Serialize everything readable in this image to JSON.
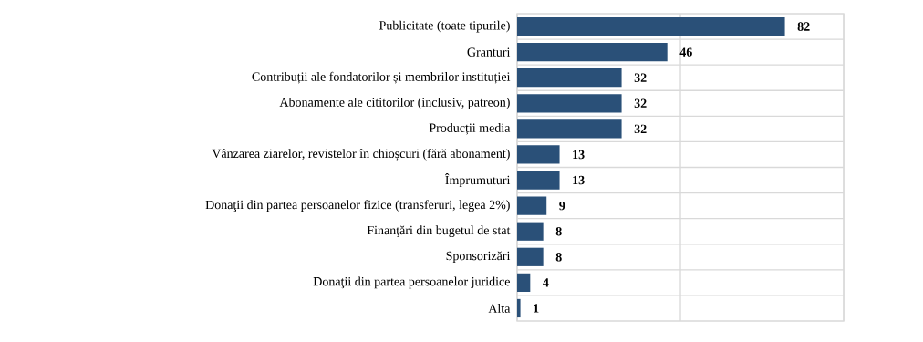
{
  "chart_data": {
    "type": "bar",
    "orientation": "horizontal",
    "categories": [
      "Publicitate (toate tipurile)",
      "Granturi",
      "Contribuții ale fondatorilor și membrilor instituției",
      "Abonamente ale cititorilor (inclusiv, patreon)",
      "Producții media",
      "Vânzarea ziarelor, revistelor în chioșcuri (fără abonament)",
      "Împrumuturi",
      "Donaţii din partea persoanelor fizice (transferuri, legea 2%)",
      "Finanţări din bugetul de stat",
      "Sponsorizări",
      "Donaţii din partea persoanelor juridice",
      "Alta"
    ],
    "values": [
      82,
      46,
      32,
      32,
      32,
      13,
      13,
      9,
      8,
      8,
      4,
      1
    ],
    "color": "#2a5078",
    "xlim": [
      0,
      100
    ],
    "xticks": [
      {
        "value": 0,
        "label": null
      },
      {
        "value": 50,
        "label": null
      },
      {
        "value": 100,
        "label": null
      }
    ],
    "grid": true,
    "tick_labels": "y",
    "data_labels": true
  }
}
